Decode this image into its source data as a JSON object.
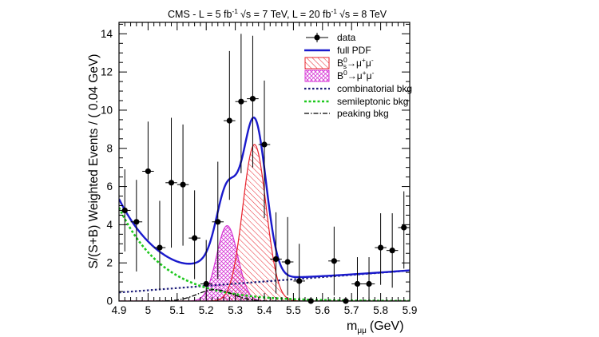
{
  "colors": {
    "full_pdf": "#1a1acc",
    "bs": "#e8202a",
    "bd": "#d535d5",
    "combinatorial": "#1f1f7a",
    "semileptonic": "#1ec81e",
    "peaking": "#000000",
    "data": "#000000"
  },
  "chart_data": {
    "type": "scatter",
    "title": "CMS - L = 5 fb⁻¹ √s = 7 TeV, L = 20 fb⁻¹ √s = 8 TeV",
    "header": {
      "experiment": "CMS - L = 5 fb",
      "lumi7_sup": "-1",
      "energy7": "√s = 7 TeV, L = 20 fb",
      "lumi8_sup": "-1",
      "energy8": "√s = 8 TeV"
    },
    "xlabel": "m",
    "xlabel_sub": "μμ",
    "xlabel_unit": "(GeV)",
    "ylabel": "S/(S+B) Weighted Events / ( 0.04 GeV)",
    "xlim": [
      4.9,
      5.9
    ],
    "ylim": [
      0,
      14.6
    ],
    "x_ticks": [
      "4.9",
      "5",
      "5.1",
      "5.2",
      "5.3",
      "5.4",
      "5.5",
      "5.6",
      "5.7",
      "5.8",
      "5.9"
    ],
    "y_ticks": [
      "0",
      "2",
      "4",
      "6",
      "8",
      "10",
      "12",
      "14"
    ],
    "grid": false,
    "legend_position": "top-right",
    "legend": [
      {
        "key": "data",
        "label": "data"
      },
      {
        "key": "full_pdf",
        "label": "full PDF"
      },
      {
        "key": "bs",
        "label": "B",
        "sup": "0",
        "sub": "s",
        "tail": "→μ",
        "tail_sup": "+",
        "tail2": "μ",
        "tail2_sup": "-"
      },
      {
        "key": "bd",
        "label": "B",
        "sup": "0",
        "sub": "",
        "tail": "→μ",
        "tail_sup": "+",
        "tail2": "μ",
        "tail2_sup": "-"
      },
      {
        "key": "combinatorial",
        "label": "combinatorial bkg"
      },
      {
        "key": "semileptonic",
        "label": "semileptonic bkg"
      },
      {
        "key": "peaking",
        "label": "peaking bkg"
      }
    ],
    "data_points": [
      {
        "x": 4.92,
        "y": 4.75,
        "lo": 2.6,
        "hi": 6.9
      },
      {
        "x": 4.96,
        "y": 4.15,
        "lo": 1.55,
        "hi": 6.35
      },
      {
        "x": 5.0,
        "y": 6.8,
        "lo": 3.2,
        "hi": 9.4
      },
      {
        "x": 5.04,
        "y": 2.8,
        "lo": 0.6,
        "hi": 5.25
      },
      {
        "x": 5.08,
        "y": 6.2,
        "lo": 2.8,
        "hi": 9.6
      },
      {
        "x": 5.12,
        "y": 6.1,
        "lo": 2.9,
        "hi": 9.25
      },
      {
        "x": 5.16,
        "y": 3.3,
        "lo": 1.15,
        "hi": 5.8
      },
      {
        "x": 5.2,
        "y": 0.9,
        "lo": 0.0,
        "hi": 3.2
      },
      {
        "x": 5.24,
        "y": 4.15,
        "lo": 1.15,
        "hi": 7.3
      },
      {
        "x": 5.28,
        "y": 9.45,
        "lo": 5.3,
        "hi": 13.1
      },
      {
        "x": 5.32,
        "y": 10.45,
        "lo": 6.7,
        "hi": 14.0
      },
      {
        "x": 5.36,
        "y": 10.6,
        "lo": 7.0,
        "hi": 13.9
      },
      {
        "x": 5.4,
        "y": 8.2,
        "lo": 4.35,
        "hi": 11.55
      },
      {
        "x": 5.44,
        "y": 2.2,
        "lo": 0.4,
        "hi": 4.65
      },
      {
        "x": 5.48,
        "y": 2.05,
        "lo": 0.3,
        "hi": 4.4
      },
      {
        "x": 5.52,
        "y": 1.05,
        "lo": 0.05,
        "hi": 3.0
      },
      {
        "x": 5.56,
        "y": 0.0,
        "lo": 0.0,
        "hi": 0.0
      },
      {
        "x": 5.64,
        "y": 2.1,
        "lo": 0.3,
        "hi": 3.9
      },
      {
        "x": 5.68,
        "y": 0.0,
        "lo": 0.0,
        "hi": 0.0
      },
      {
        "x": 5.72,
        "y": 0.9,
        "lo": 0.0,
        "hi": 2.3
      },
      {
        "x": 5.76,
        "y": 0.9,
        "lo": 0.0,
        "hi": 2.3
      },
      {
        "x": 5.8,
        "y": 2.8,
        "lo": 0.85,
        "hi": 4.6
      },
      {
        "x": 5.84,
        "y": 2.65,
        "lo": 0.7,
        "hi": 4.6
      },
      {
        "x": 5.88,
        "y": 3.85,
        "lo": 1.7,
        "hi": 5.75
      }
    ],
    "model": {
      "combinatorial": {
        "at_xmin": 0.45,
        "at_xmax": 1.6
      },
      "semileptonic": {
        "at_xmin": 4.9,
        "decay_per_gev": 6.5
      },
      "peaking": {
        "center": 5.23,
        "width": 0.06,
        "amplitude": 0.6
      },
      "bd": {
        "center": 5.272,
        "width": 0.036,
        "amplitude": 3.95
      },
      "bs": {
        "center": 5.366,
        "width": 0.04,
        "amplitude": 8.2
      }
    }
  }
}
